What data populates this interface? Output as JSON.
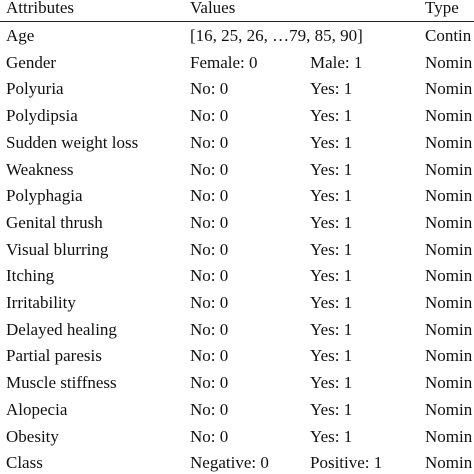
{
  "table": {
    "header": [
      "Attributes",
      "Values",
      "Type"
    ],
    "rows": [
      [
        "Age",
        "[16, 25, 26, …79, 85, 90]",
        "Contin"
      ],
      [
        "Gender",
        "Female: 0",
        "Male: 1",
        "Nomin"
      ],
      [
        "Polyuria",
        "No: 0",
        "Yes: 1",
        "Nomin"
      ],
      [
        "Polydipsia",
        "No: 0",
        "Yes: 1",
        "Nomin"
      ],
      [
        "Sudden weight loss",
        "No: 0",
        "Yes: 1",
        "Nomin"
      ],
      [
        "Weakness",
        "No: 0",
        "Yes: 1",
        "Nomin"
      ],
      [
        "Polyphagia",
        "No: 0",
        "Yes: 1",
        "Nomin"
      ],
      [
        "Genital thrush",
        "No: 0",
        "Yes: 1",
        "Nomin"
      ],
      [
        "Visual blurring",
        "No: 0",
        "Yes: 1",
        "Nomin"
      ],
      [
        "Itching",
        "No: 0",
        "Yes: 1",
        "Nomin"
      ],
      [
        "Irritability",
        "No: 0",
        "Yes: 1",
        "Nomin"
      ],
      [
        "Delayed healing",
        "No: 0",
        "Yes: 1",
        "Nomin"
      ],
      [
        "Partial paresis",
        "No: 0",
        "Yes: 1",
        "Nomin"
      ],
      [
        "Muscle stiffness",
        "No: 0",
        "Yes: 1",
        "Nomin"
      ],
      [
        "Alopecia",
        "No: 0",
        "Yes: 1",
        "Nomin"
      ],
      [
        "Obesity",
        "No: 0",
        "Yes: 1",
        "Nomin"
      ],
      [
        "Class",
        "Negative: 0",
        "Positive: 1",
        "Nomin"
      ]
    ]
  }
}
